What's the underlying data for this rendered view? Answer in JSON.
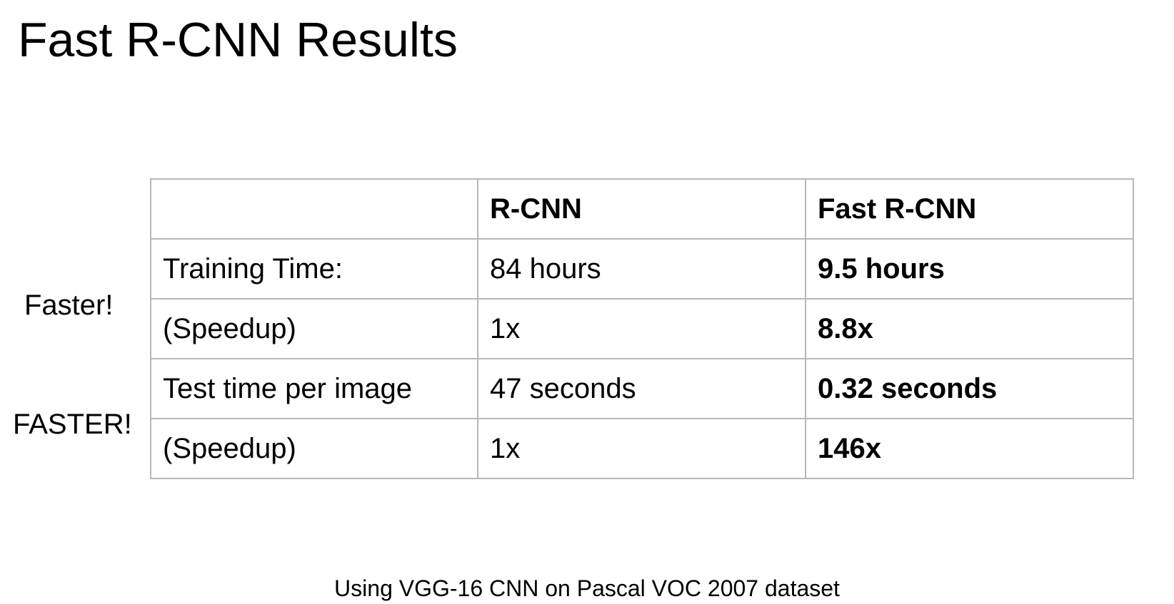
{
  "title": "Fast R-CNN Results",
  "side_notes": {
    "faster": "Faster!",
    "fastest": "FASTER!"
  },
  "table": {
    "headers": [
      "",
      "R-CNN",
      "Fast R-CNN"
    ],
    "rows": [
      [
        "Training Time:",
        "84 hours",
        "9.5 hours"
      ],
      [
        "(Speedup)",
        "1x",
        "8.8x"
      ],
      [
        "Test time per image",
        "47 seconds",
        "0.32 seconds"
      ],
      [
        "(Speedup)",
        "1x",
        "146x"
      ]
    ]
  },
  "footnote": "Using VGG-16 CNN on Pascal VOC 2007 dataset"
}
